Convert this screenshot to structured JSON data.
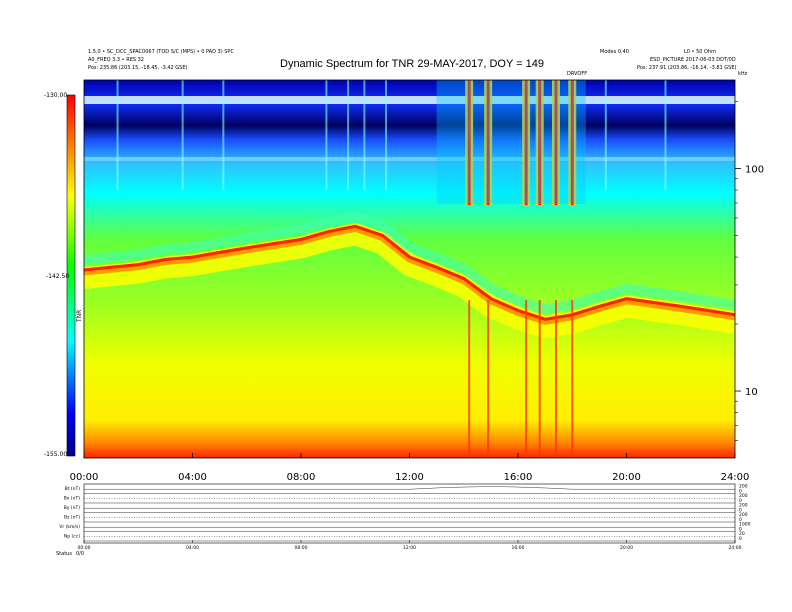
{
  "header": {
    "left_line1": "1.5.0 • SC_DCC_SPAC0067 (TOD S/C (MPS) • 0 PAD 3) SPC",
    "left_line2": "A0_FREQ 3.3 • RES 32",
    "left_line3": "Pos:    235.86 (203.15, -18.45, -3.42 GSE)",
    "right_line1": "Modes 0.40",
    "right_line2": "L0 • 50 Ohm",
    "right_line3": "ESD_PICTURE 2017-06-03 DDT/0D",
    "right_line4": "Pos:    237.91 (203.86, -16.14, -3.81 GSE)",
    "marker_label": "DRVOFF",
    "corner_label": "kHz"
  },
  "chart_data": {
    "type": "heatmap",
    "title": "Dynamic Spectrum for TNR 29-MAY-2017, DOY = 149",
    "colorbar": {
      "label": "TNR",
      "range": [
        -155,
        -130
      ],
      "tick_labels": [
        "-130.00",
        "-142.50",
        "-155.00"
      ],
      "tick_values": [
        -130,
        -142.5,
        -155
      ],
      "colors": [
        "#00008b",
        "#0000ff",
        "#00ffff",
        "#00ff00",
        "#ffff00",
        "#ff0000"
      ]
    },
    "x_axis": {
      "label": "",
      "range_hours": [
        0,
        24
      ],
      "tick_labels": [
        "00:00",
        "04:00",
        "08:00",
        "12:00",
        "16:00",
        "20:00",
        "24:00"
      ],
      "tick_hours": [
        0,
        4,
        8,
        12,
        16,
        20,
        24
      ]
    },
    "y_axis": {
      "label": "kHz",
      "scale": "log",
      "range_khz": [
        5,
        250
      ],
      "tick_labels": [
        "10",
        "100"
      ],
      "tick_values": [
        10,
        100
      ]
    },
    "plasma_line_khz": {
      "hours": [
        0,
        1,
        2,
        3,
        4,
        5,
        6,
        7,
        8,
        9,
        10,
        11,
        12,
        13,
        14,
        15,
        16,
        17,
        18,
        19,
        20,
        21,
        22,
        23,
        24
      ],
      "values": [
        35,
        36,
        37,
        39,
        40,
        42,
        44,
        46,
        48,
        52,
        55,
        50,
        40,
        36,
        32,
        26,
        23,
        21,
        22,
        24,
        26,
        25,
        24,
        23,
        22
      ]
    },
    "bursts_hours": [
      14.2,
      14.9,
      16.3,
      16.8,
      17.4,
      18.0
    ]
  },
  "panels": {
    "rows": [
      {
        "label": "Bt (nT)",
        "right_ticks": [
          "200",
          "0"
        ]
      },
      {
        "label": "Bx (nT)",
        "right_ticks": [
          "200",
          "0"
        ]
      },
      {
        "label": "By (nT)",
        "right_ticks": [
          "200",
          "0"
        ]
      },
      {
        "label": "Bz (nT)",
        "right_ticks": [
          "200",
          "0"
        ]
      },
      {
        "label": "Vr (km/s)",
        "right_ticks": [
          "1000",
          "0"
        ]
      },
      {
        "label": "Np (cc)",
        "right_ticks": [
          "20",
          "0"
        ]
      }
    ],
    "x_tick_labels": [
      "00:00",
      "04:00",
      "08:00",
      "12:00",
      "16:00",
      "20:00",
      "24:00"
    ],
    "status_label": "Status",
    "status_value": "0/0"
  }
}
